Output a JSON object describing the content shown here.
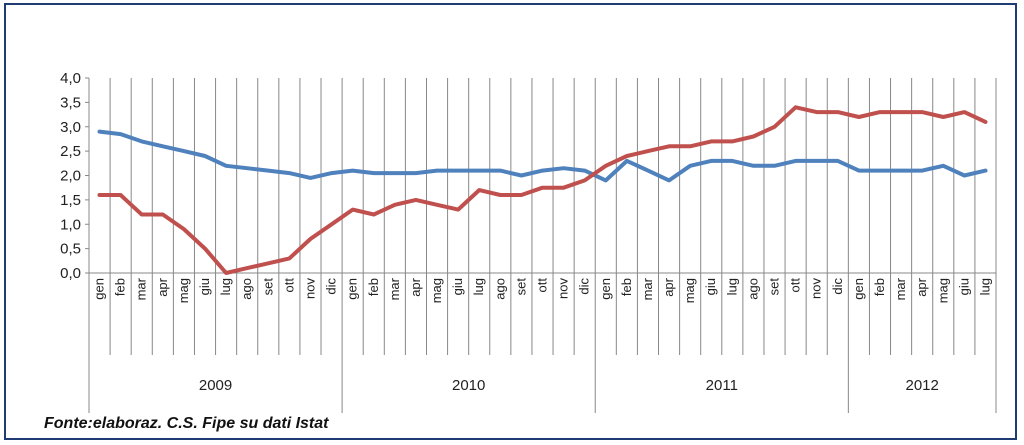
{
  "source_note": "Fonte:elaboraz. C.S. Fipe su dati Istat",
  "colors": {
    "series_blue": "#4f81bd",
    "series_red": "#c0504d",
    "frame": "#1f3b73",
    "grid": "#888888"
  },
  "chart_data": {
    "type": "line",
    "title": "",
    "xlabel": "",
    "ylabel": "",
    "ylim": [
      0,
      4
    ],
    "yticks": [
      "0,0",
      "0,5",
      "1,0",
      "1,5",
      "2,0",
      "2,5",
      "3,0",
      "3,5",
      "4,0"
    ],
    "grid": "vertical",
    "legend": "none",
    "categories": [
      "gen",
      "feb",
      "mar",
      "apr",
      "mag",
      "giu",
      "lug",
      "ago",
      "set",
      "ott",
      "nov",
      "dic",
      "gen",
      "feb",
      "mar",
      "apr",
      "mag",
      "giu",
      "lug",
      "ago",
      "set",
      "ott",
      "nov",
      "dic",
      "gen",
      "feb",
      "mar",
      "apr",
      "mag",
      "giu",
      "lug",
      "ago",
      "set",
      "ott",
      "nov",
      "dic",
      "gen",
      "feb",
      "mar",
      "apr",
      "mag",
      "giu",
      "lug"
    ],
    "years": [
      {
        "label": "2009",
        "count": 12
      },
      {
        "label": "2010",
        "count": 12
      },
      {
        "label": "2011",
        "count": 12
      },
      {
        "label": "2012",
        "count": 7
      }
    ],
    "series": [
      {
        "color": "#4f81bd",
        "values": [
          2.9,
          2.85,
          2.7,
          2.6,
          2.5,
          2.4,
          2.2,
          2.15,
          2.1,
          2.05,
          1.95,
          2.05,
          2.1,
          2.05,
          2.05,
          2.05,
          2.1,
          2.1,
          2.1,
          2.1,
          2.0,
          2.1,
          2.15,
          2.1,
          1.9,
          2.3,
          2.1,
          1.9,
          2.2,
          2.3,
          2.3,
          2.2,
          2.2,
          2.3,
          2.3,
          2.3,
          2.1,
          2.1,
          2.1,
          2.1,
          2.2,
          2.0,
          2.1
        ]
      },
      {
        "color": "#c0504d",
        "values": [
          1.6,
          1.6,
          1.2,
          1.2,
          0.9,
          0.5,
          0.0,
          0.1,
          0.2,
          0.3,
          0.7,
          1.0,
          1.3,
          1.2,
          1.4,
          1.5,
          1.4,
          1.3,
          1.7,
          1.6,
          1.6,
          1.75,
          1.75,
          1.9,
          2.2,
          2.4,
          2.5,
          2.6,
          2.6,
          2.7,
          2.7,
          2.8,
          3.0,
          3.4,
          3.3,
          3.3,
          3.2,
          3.3,
          3.3,
          3.3,
          3.2,
          3.3,
          3.1
        ]
      }
    ]
  }
}
